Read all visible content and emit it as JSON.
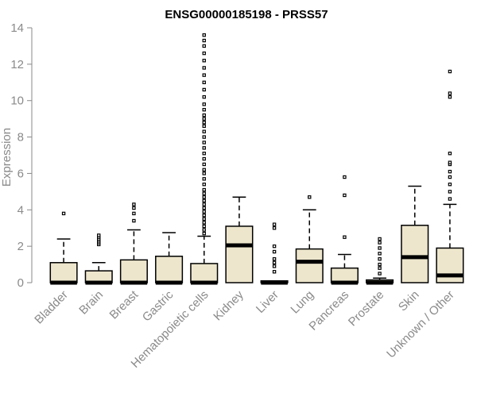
{
  "chart_data": {
    "type": "boxplot",
    "title": "ENSG00000185198 - PRSS57",
    "xlabel": "",
    "ylabel": "Expression",
    "ylim": [
      0,
      14
    ],
    "yticks": [
      0,
      2,
      4,
      6,
      8,
      10,
      12,
      14
    ],
    "box_color": "#ede6cd",
    "categories": [
      "Bladder",
      "Brain",
      "Breast",
      "Gastric",
      "Hematopoietic cells",
      "Kidney",
      "Liver",
      "Lung",
      "Pancreas",
      "Prostate",
      "Skin",
      "Unknown / Other"
    ],
    "boxes": [
      {
        "q1": 0,
        "median": 0,
        "q3": 1.1,
        "whisker_low": 0,
        "whisker_high": 2.4,
        "outliers": [
          3.8
        ]
      },
      {
        "q1": 0,
        "median": 0,
        "q3": 0.65,
        "whisker_low": 0,
        "whisker_high": 1.1,
        "outliers": [
          2.1,
          2.2,
          2.3,
          2.4,
          2.5,
          2.6
        ]
      },
      {
        "q1": 0,
        "median": 0,
        "q3": 1.25,
        "whisker_low": 0,
        "whisker_high": 2.9,
        "outliers": [
          3.4,
          3.8,
          4.1,
          4.3
        ]
      },
      {
        "q1": 0,
        "median": 0,
        "q3": 1.45,
        "whisker_low": 0,
        "whisker_high": 2.75,
        "outliers": []
      },
      {
        "q1": 0,
        "median": 0,
        "q3": 1.05,
        "whisker_low": 0,
        "whisker_high": 2.55,
        "outliers": [
          2.7,
          2.9,
          3.1,
          3.3,
          3.5,
          3.7,
          3.9,
          4.1,
          4.3,
          4.5,
          4.7,
          4.9,
          5.1,
          5.4,
          5.7,
          6.0,
          6.2,
          6.5,
          6.8,
          7.1,
          7.4,
          7.7,
          8.0,
          8.3,
          8.6,
          8.8,
          9.0,
          9.2,
          9.5,
          9.8,
          10.2,
          10.6,
          11.0,
          11.4,
          11.8,
          12.2,
          12.6,
          13.0,
          13.3,
          13.6
        ]
      },
      {
        "q1": 0,
        "median": 2.05,
        "q3": 3.1,
        "whisker_low": 0,
        "whisker_high": 4.7,
        "outliers": []
      },
      {
        "q1": 0,
        "median": 0,
        "q3": 0.1,
        "whisker_low": 0,
        "whisker_high": 0.1,
        "outliers": [
          0.6,
          0.9,
          1.1,
          1.3,
          1.7,
          2.0,
          3.0,
          3.2
        ]
      },
      {
        "q1": 0,
        "median": 1.15,
        "q3": 1.85,
        "whisker_low": 0,
        "whisker_high": 4.0,
        "outliers": [
          4.7
        ]
      },
      {
        "q1": 0,
        "median": 0,
        "q3": 0.8,
        "whisker_low": 0,
        "whisker_high": 1.55,
        "outliers": [
          2.5,
          4.8,
          5.8
        ]
      },
      {
        "q1": 0,
        "median": 0,
        "q3": 0.15,
        "whisker_low": 0,
        "whisker_high": 0.25,
        "outliers": [
          0.5,
          0.8,
          1.0,
          1.3,
          1.6,
          1.9,
          2.2,
          2.4
        ]
      },
      {
        "q1": 0,
        "median": 1.4,
        "q3": 3.15,
        "whisker_low": 0,
        "whisker_high": 5.3,
        "outliers": []
      },
      {
        "q1": 0,
        "median": 0.4,
        "q3": 1.9,
        "whisker_low": 0,
        "whisker_high": 4.3,
        "outliers": [
          4.6,
          5.0,
          5.4,
          5.8,
          6.1,
          6.5,
          6.6,
          7.1,
          10.2,
          10.4,
          11.6
        ]
      }
    ]
  }
}
